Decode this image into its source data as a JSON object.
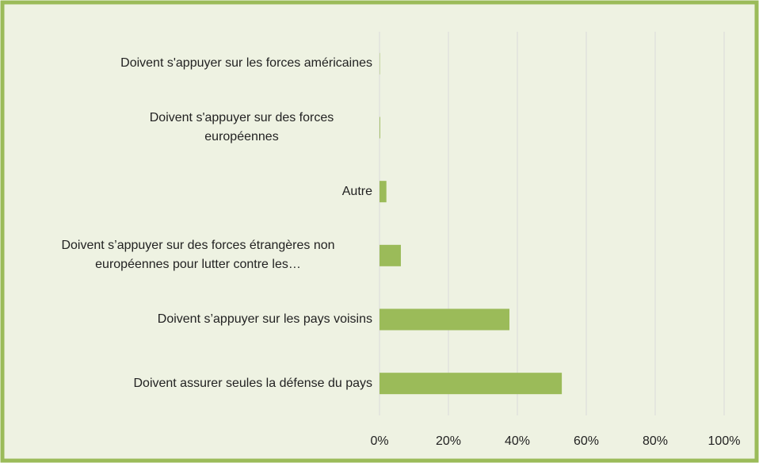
{
  "chart_data": {
    "type": "barh",
    "categories": [
      "Doivent s'appuyer sur les forces américaines",
      "Doivent s'appuyer sur des forces européennes",
      "Autre",
      "Doivent s’appuyer sur des forces étrangères non européennes pour lutter contre les…",
      "Doivent s’appuyer sur les pays voisins",
      "Doivent assurer seules la défense du pays"
    ],
    "values": [
      0.1,
      0.2,
      2,
      6.2,
      37.7,
      52.9
    ],
    "color": "#9bbb59",
    "xlim": [
      0,
      100
    ],
    "xticks": [
      {
        "value": 0,
        "label": "0%"
      },
      {
        "value": 20,
        "label": "20%"
      },
      {
        "value": 40,
        "label": "40%"
      },
      {
        "value": 60,
        "label": "60%"
      },
      {
        "value": 80,
        "label": "80%"
      },
      {
        "value": 100,
        "label": "100%"
      }
    ],
    "grid": true
  }
}
